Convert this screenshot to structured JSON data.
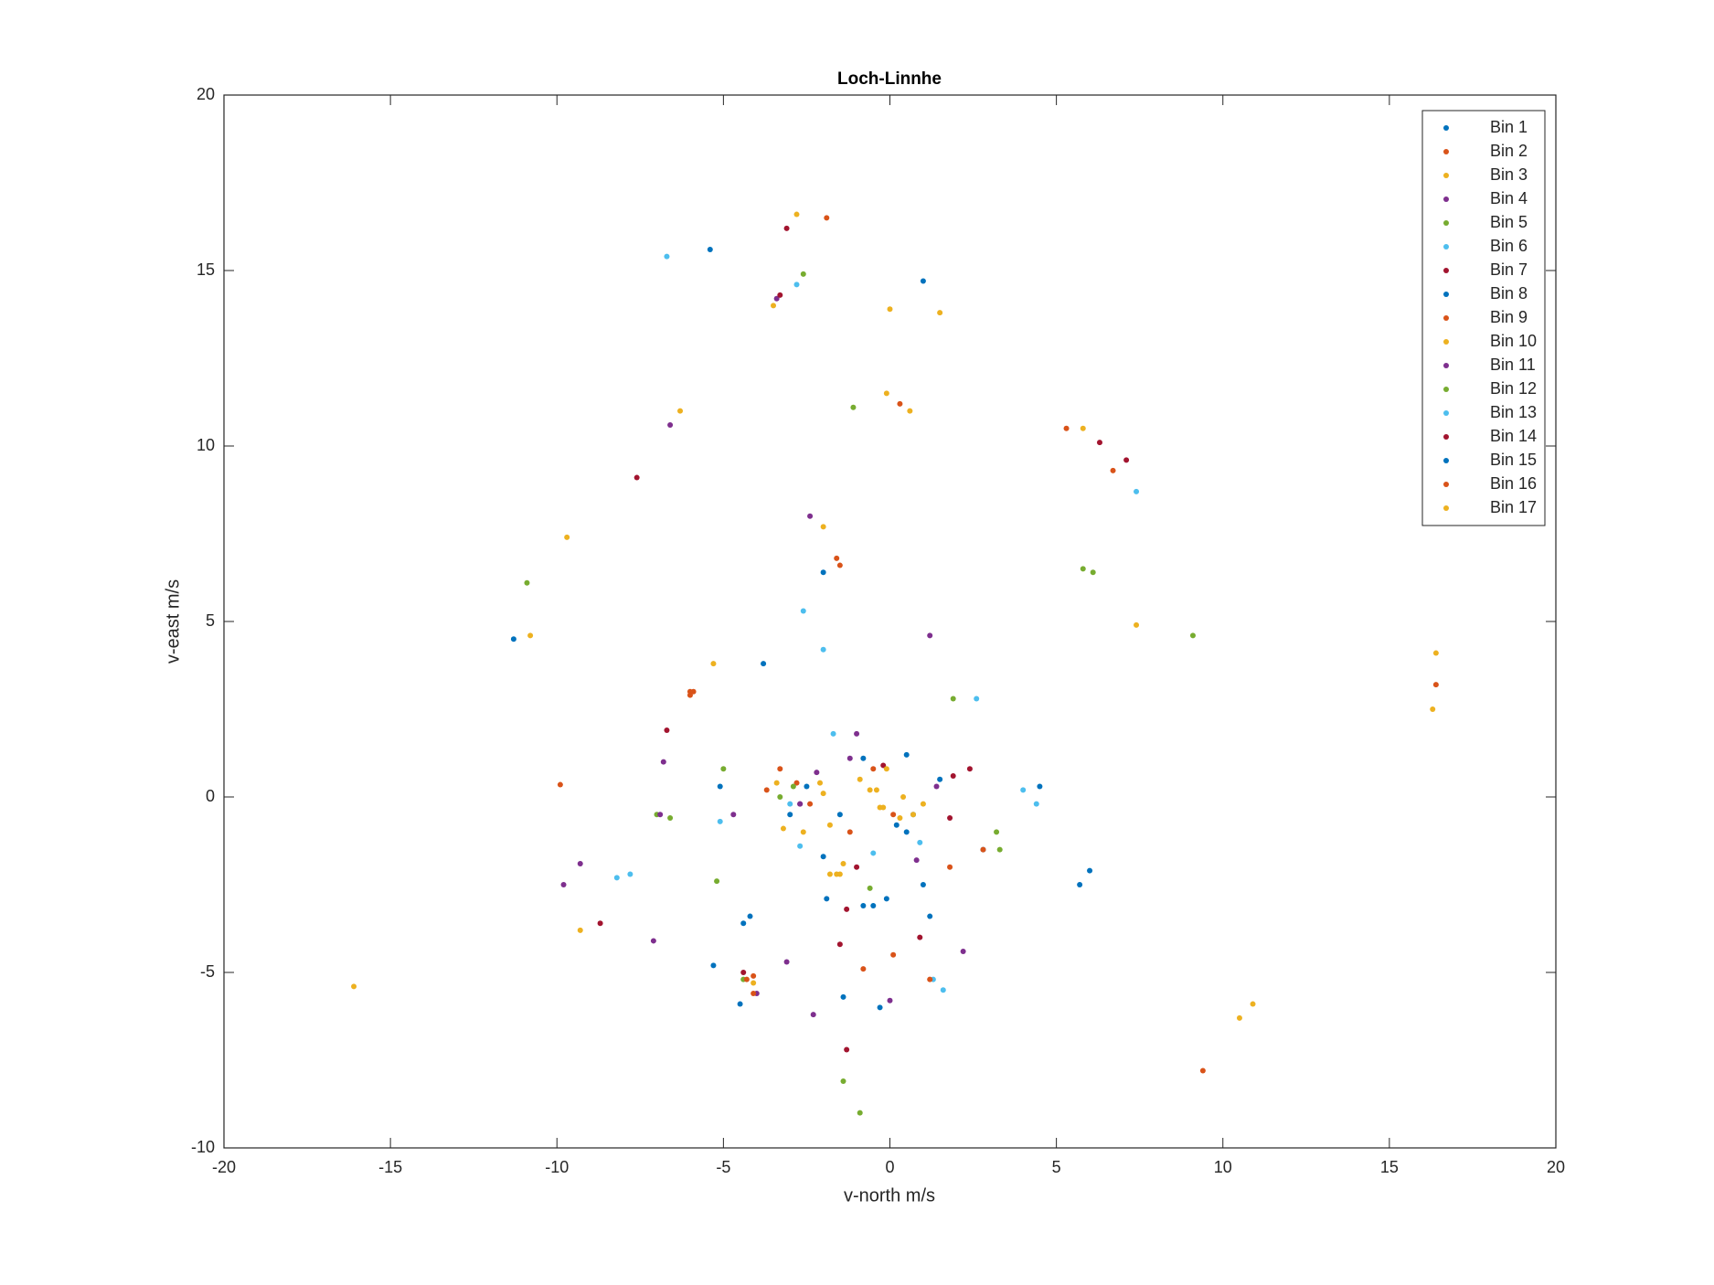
{
  "chart_data": {
    "type": "scatter",
    "title": "Loch-Linnhe",
    "x_label": "v-north m/s",
    "y_label": "v-east m/s",
    "xlim": [
      -20,
      20
    ],
    "ylim": [
      -10,
      20
    ],
    "xticks": [
      -20,
      -15,
      -10,
      -5,
      0,
      5,
      10,
      15,
      20
    ],
    "yticks": [
      -10,
      -5,
      0,
      5,
      10,
      15,
      20
    ],
    "grid": false,
    "legend": "northeast",
    "series": [
      {
        "name": "Bin 1",
        "color": "#0072BD",
        "x": [
          -1.5,
          0.5,
          1.0,
          -0.8,
          0.2,
          -2.5,
          1.5,
          -4.2,
          4.5,
          5.7,
          -5.3,
          -11.3,
          -0.3,
          -2.0
        ],
        "values": [
          -0.5,
          1.2,
          -2.5,
          -3.1,
          -0.8,
          0.3,
          0.5,
          -3.4,
          0.3,
          -2.5,
          -4.8,
          4.5,
          -6.0,
          -1.7
        ]
      },
      {
        "name": "Bin 2",
        "color": "#D95319",
        "x": [
          -1.2,
          -0.5,
          1.8,
          -2.8,
          -4.1,
          -9.9,
          -6.0,
          -1.6,
          9.4,
          16.4,
          -1.9,
          0.3
        ],
        "values": [
          -1.0,
          0.8,
          -2.0,
          0.4,
          -5.1,
          0.35,
          3.0,
          6.8,
          -7.8,
          3.2,
          16.5,
          11.2
        ]
      },
      {
        "name": "Bin 3",
        "color": "#EDB120",
        "x": [
          -2.0,
          -0.2,
          -1.6,
          -0.9,
          0.4,
          -2.6,
          -16.1,
          10.5,
          16.3,
          -10.8,
          -5.3,
          -3.5,
          0.0
        ],
        "values": [
          0.1,
          -0.3,
          -2.2,
          0.5,
          0.0,
          -1.0,
          -5.4,
          -6.3,
          2.5,
          4.6,
          3.8,
          14.0,
          13.9
        ]
      },
      {
        "name": "Bin 4",
        "color": "#7E2F8E",
        "x": [
          -2.7,
          0.8,
          -1.0,
          -6.8,
          -4.0,
          -2.4,
          -3.4,
          2.2,
          -9.3,
          1.2,
          -7.1,
          -2.7
        ],
        "values": [
          -0.2,
          -1.8,
          1.8,
          1.0,
          -5.6,
          8.0,
          14.2,
          -4.4,
          -1.9,
          4.6,
          -4.1,
          -0.2
        ]
      },
      {
        "name": "Bin 5",
        "color": "#77AC30",
        "x": [
          -2.9,
          -0.6,
          1.9,
          -7.0,
          -5.2,
          9.1,
          -1.4,
          -0.9,
          5.8,
          -10.9,
          3.3
        ],
        "values": [
          0.3,
          -2.6,
          2.8,
          -0.5,
          -2.4,
          4.6,
          -8.1,
          -9.0,
          6.5,
          6.1,
          -1.5
        ]
      },
      {
        "name": "Bin 6",
        "color": "#4DBEEE",
        "x": [
          -1.7,
          0.9,
          -3.0,
          7.4,
          -8.2,
          -2.6,
          1.6,
          4.0,
          -2.8,
          -6.7
        ],
        "values": [
          1.8,
          -1.3,
          -0.2,
          8.7,
          -2.3,
          5.3,
          -5.5,
          0.2,
          14.6,
          15.4
        ]
      },
      {
        "name": "Bin 7",
        "color": "#A2142F",
        "x": [
          -0.2,
          1.8,
          -1.3,
          -3.1,
          -8.7,
          -7.6,
          1.9,
          7.1,
          6.3,
          -1.3
        ],
        "values": [
          0.9,
          -0.6,
          -3.2,
          16.2,
          -3.6,
          9.1,
          0.6,
          9.6,
          10.1,
          -7.2
        ]
      },
      {
        "name": "Bin 8",
        "color": "#0072BD",
        "x": [
          0.7,
          -1.9,
          2.8,
          -4.4,
          -3.8,
          -0.1,
          -5.1,
          -5.4,
          -2.0,
          1.0
        ],
        "values": [
          -0.5,
          -2.9,
          -1.5,
          -3.6,
          3.8,
          -2.9,
          0.3,
          15.6,
          6.4,
          14.7
        ]
      },
      {
        "name": "Bin 9",
        "color": "#D95319",
        "x": [
          -2.4,
          0.1,
          -3.3,
          -1.5,
          0.1,
          -6.0,
          5.3,
          2.8,
          6.7
        ],
        "values": [
          -0.2,
          -0.5,
          0.8,
          6.6,
          -4.5,
          2.9,
          10.5,
          -1.5,
          9.3
        ]
      },
      {
        "name": "Bin 10",
        "color": "#EDB120",
        "x": [
          -1.8,
          -0.4,
          0.7,
          -3.2,
          -1.5,
          -9.7,
          -6.3,
          -2.0,
          -0.1,
          -2.8,
          5.8,
          7.4
        ],
        "values": [
          -0.8,
          0.2,
          -0.5,
          -0.9,
          -2.2,
          7.4,
          11.0,
          7.7,
          11.5,
          16.6,
          10.5,
          4.9
        ]
      },
      {
        "name": "Bin 11",
        "color": "#7E2F8E",
        "x": [
          -2.2,
          1.4,
          -6.6,
          -6.9,
          -3.1,
          -4.7,
          0.0,
          -9.8,
          -2.3,
          -1.2
        ],
        "values": [
          0.7,
          0.3,
          10.6,
          -0.5,
          -4.7,
          -0.5,
          -5.8,
          -2.5,
          -6.2,
          1.1
        ]
      },
      {
        "name": "Bin 12",
        "color": "#77AC30",
        "x": [
          -3.3,
          -6.6,
          -4.4,
          -1.1,
          6.1,
          -5.0,
          3.2,
          -2.6
        ],
        "values": [
          0.0,
          -0.6,
          -5.2,
          11.1,
          6.4,
          0.8,
          -1.0,
          14.9
        ]
      },
      {
        "name": "Bin 13",
        "color": "#4DBEEE",
        "x": [
          -2.7,
          1.3,
          -5.1,
          -2.0,
          -7.8,
          4.4,
          2.6,
          -0.5
        ],
        "values": [
          -1.4,
          -5.2,
          -0.7,
          4.2,
          -2.2,
          -0.2,
          2.8,
          -1.6
        ]
      },
      {
        "name": "Bin 14",
        "color": "#A2142F",
        "x": [
          -1.0,
          2.4,
          -4.4,
          -6.7,
          -1.5,
          -3.3,
          0.9
        ],
        "values": [
          -2.0,
          0.8,
          -5.0,
          1.9,
          -4.2,
          14.3,
          -4.0
        ]
      },
      {
        "name": "Bin 15",
        "color": "#0072BD",
        "x": [
          -0.5,
          -3.0,
          -0.8,
          1.2,
          6.0,
          -4.5,
          0.5,
          -1.4
        ],
        "values": [
          -3.1,
          -0.5,
          1.1,
          -3.4,
          -2.1,
          -5.9,
          -1.0,
          -5.7
        ]
      },
      {
        "name": "Bin 16",
        "color": "#D95319",
        "x": [
          -3.7,
          -4.3,
          1.2,
          -4.1,
          -5.9,
          -0.8
        ],
        "values": [
          0.2,
          -5.2,
          -5.2,
          -5.6,
          3.0,
          -4.9
        ]
      },
      {
        "name": "Bin 17",
        "color": "#EDB120",
        "x": [
          -1.8,
          -0.3,
          -0.6,
          -1.4,
          -2.1,
          0.3,
          -0.1,
          1.0,
          -3.4,
          -4.1,
          16.4,
          10.9,
          -9.3,
          1.5,
          0.6
        ],
        "values": [
          -2.2,
          -0.3,
          0.2,
          -1.9,
          0.4,
          -0.6,
          0.8,
          -0.2,
          0.4,
          -5.3,
          4.1,
          -5.9,
          -3.8,
          13.8,
          11.0
        ]
      }
    ]
  }
}
